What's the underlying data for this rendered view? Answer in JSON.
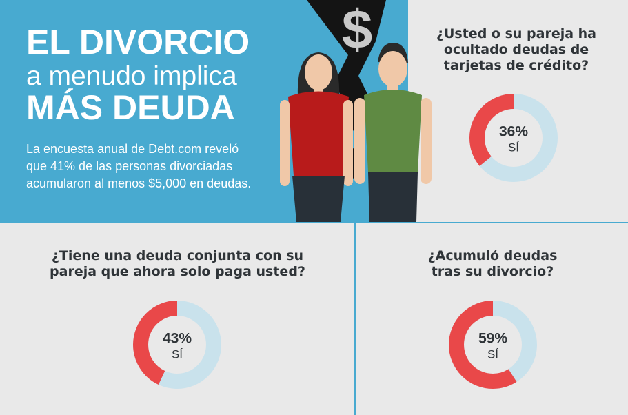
{
  "header": {
    "title_line1": "EL DIVORCIO",
    "title_line2": "a menudo implica",
    "title_line3": "MÁS DEUDA",
    "body": "La encuesta anual de Debt.com reveló que 41% de las personas divorciadas acumularon al menos $5,000 en deudas.",
    "symbol": "$"
  },
  "chart_data": [
    {
      "type": "pie",
      "title": "¿Usted o su pareja ha ocultado deudas de tarjetas de crédito?",
      "categories": [
        "SÍ"
      ],
      "values": [
        36
      ],
      "value_labels": [
        "36%"
      ],
      "color": "#e94849",
      "rest_color": "#c9e2ec"
    },
    {
      "type": "pie",
      "title": "¿Tiene una deuda conjunta con su pareja que ahora solo paga usted?",
      "categories": [
        "SÍ"
      ],
      "values": [
        43
      ],
      "value_labels": [
        "43%"
      ],
      "color": "#e94849",
      "rest_color": "#c9e2ec"
    },
    {
      "type": "pie",
      "title": "¿Acumuló deudas tras su divorcio?",
      "categories": [
        "SÍ"
      ],
      "values": [
        59
      ],
      "value_labels": [
        "59%"
      ],
      "color": "#e94849",
      "rest_color": "#c9e2ec"
    }
  ]
}
